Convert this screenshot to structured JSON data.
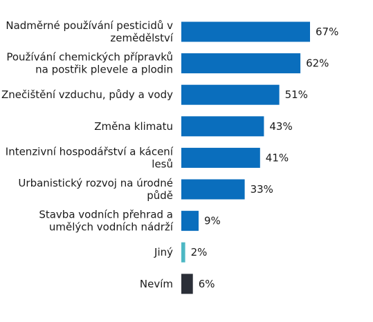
{
  "chart_data": {
    "type": "bar",
    "orientation": "horizontal",
    "categories": [
      [
        "Nadměrné používání pesticidů v",
        "zemědělství"
      ],
      [
        "Používání chemických přípravků",
        "na postřik plevele a plodin"
      ],
      [
        "Znečištění vzduchu, půdy a vody"
      ],
      [
        "Změna klimatu"
      ],
      [
        "Intenzivní hospodářství a kácení",
        "lesů"
      ],
      [
        "Urbanistický rozvoj na úrodné",
        "půdě"
      ],
      [
        "Stavba vodních přehrad a",
        "umělých vodních nádrží"
      ],
      [
        "Jiný"
      ],
      [
        "Nevím"
      ]
    ],
    "values": [
      67,
      62,
      51,
      43,
      41,
      33,
      9,
      2,
      6
    ],
    "value_labels": [
      "67%",
      "62%",
      "51%",
      "43%",
      "41%",
      "33%",
      "9%",
      "2%",
      "6%"
    ],
    "bar_colors": [
      "#0a6ebd",
      "#0a6ebd",
      "#0a6ebd",
      "#0a6ebd",
      "#0a6ebd",
      "#0a6ebd",
      "#0a6ebd",
      "#4db8c4",
      "#2b2f38"
    ],
    "xlim": [
      0,
      67
    ],
    "grid": false,
    "legend": "none"
  }
}
